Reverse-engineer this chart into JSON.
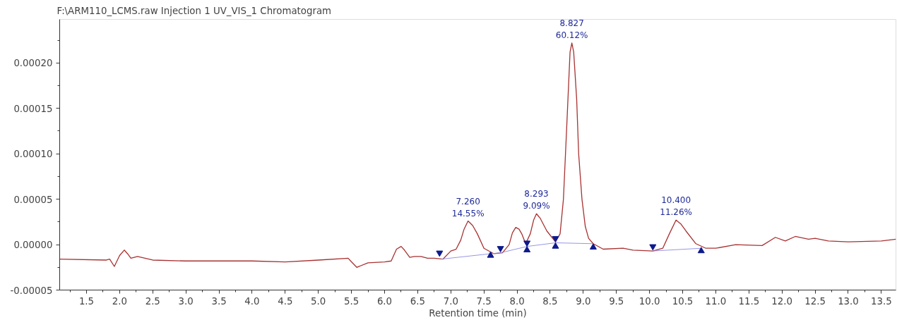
{
  "chart_data": {
    "type": "line",
    "title": "F:\\ARM110_LCMS.raw Injection 1 UV_VIS_1 Chromatogram",
    "xlabel": "Retention time (min)",
    "xlim": [
      1.095,
      13.72
    ],
    "ylim": [
      -5e-05,
      0.000248
    ],
    "xticks": [
      {
        "value": 1.25,
        "label": null
      },
      {
        "value": 1.5,
        "label": "1.5"
      },
      {
        "value": 1.75,
        "label": null
      },
      {
        "value": 2,
        "label": "2.0"
      },
      {
        "value": 2.25,
        "label": null
      },
      {
        "value": 2.5,
        "label": "2.5"
      },
      {
        "value": 2.75,
        "label": null
      },
      {
        "value": 3,
        "label": "3.0"
      },
      {
        "value": 3.25,
        "label": null
      },
      {
        "value": 3.5,
        "label": "3.5"
      },
      {
        "value": 3.75,
        "label": null
      },
      {
        "value": 4,
        "label": "4.0"
      },
      {
        "value": 4.25,
        "label": null
      },
      {
        "value": 4.5,
        "label": "4.5"
      },
      {
        "value": 4.75,
        "label": null
      },
      {
        "value": 5,
        "label": "5.0"
      },
      {
        "value": 5.25,
        "label": null
      },
      {
        "value": 5.5,
        "label": "5.5"
      },
      {
        "value": 5.75,
        "label": null
      },
      {
        "value": 6,
        "label": "6.0"
      },
      {
        "value": 6.25,
        "label": null
      },
      {
        "value": 6.5,
        "label": "6.5"
      },
      {
        "value": 6.75,
        "label": null
      },
      {
        "value": 7,
        "label": "7.0"
      },
      {
        "value": 7.25,
        "label": null
      },
      {
        "value": 7.5,
        "label": "7.5"
      },
      {
        "value": 7.75,
        "label": null
      },
      {
        "value": 8,
        "label": "8.0"
      },
      {
        "value": 8.25,
        "label": null
      },
      {
        "value": 8.5,
        "label": "8.5"
      },
      {
        "value": 8.75,
        "label": null
      },
      {
        "value": 9,
        "label": "9.0"
      },
      {
        "value": 9.25,
        "label": null
      },
      {
        "value": 9.5,
        "label": "9.5"
      },
      {
        "value": 9.75,
        "label": null
      },
      {
        "value": 10,
        "label": "10.0"
      },
      {
        "value": 10.25,
        "label": null
      },
      {
        "value": 10.5,
        "label": "10.5"
      },
      {
        "value": 10.75,
        "label": null
      },
      {
        "value": 11,
        "label": "11.0"
      },
      {
        "value": 11.25,
        "label": null
      },
      {
        "value": 11.5,
        "label": "11.5"
      },
      {
        "value": 11.75,
        "label": null
      },
      {
        "value": 12,
        "label": "12.0"
      },
      {
        "value": 12.25,
        "label": null
      },
      {
        "value": 12.5,
        "label": "12.5"
      },
      {
        "value": 12.75,
        "label": null
      },
      {
        "value": 13,
        "label": "13.0"
      },
      {
        "value": 13.25,
        "label": null
      },
      {
        "value": 13.5,
        "label": "13.5"
      }
    ],
    "yticks": [
      {
        "value": -5e-05,
        "label": "-0.00005"
      },
      {
        "value": -2.5e-05,
        "label": null
      },
      {
        "value": 0,
        "label": "0.00000"
      },
      {
        "value": 2.5e-05,
        "label": null
      },
      {
        "value": 5e-05,
        "label": "0.00005"
      },
      {
        "value": 7.5e-05,
        "label": null
      },
      {
        "value": 0.0001,
        "label": "0.00010"
      },
      {
        "value": 0.000125,
        "label": null
      },
      {
        "value": 0.00015,
        "label": "0.00015"
      },
      {
        "value": 0.000175,
        "label": null
      },
      {
        "value": 0.0002,
        "label": "0.00020"
      },
      {
        "value": 0.000225,
        "label": null
      }
    ],
    "grid": false,
    "series": [
      {
        "color": "#a83232",
        "x": [
          1.1,
          1.8,
          1.85,
          1.92,
          2.0,
          2.07,
          2.12,
          2.17,
          2.27,
          2.5,
          3.0,
          4.0,
          4.5,
          5.0,
          5.45,
          5.5,
          5.58,
          5.75,
          6.0,
          6.1,
          6.18,
          6.25,
          6.3,
          6.38,
          6.45,
          6.55,
          6.65,
          6.75,
          6.88,
          7.0,
          7.08,
          7.15,
          7.2,
          7.26,
          7.33,
          7.4,
          7.5,
          7.65,
          7.78,
          7.88,
          7.93,
          7.98,
          8.03,
          8.07,
          8.13,
          8.2,
          8.25,
          8.293,
          8.35,
          8.45,
          8.58,
          8.65,
          8.7,
          8.75,
          8.8,
          8.827,
          8.855,
          8.9,
          8.93,
          8.98,
          9.03,
          9.08,
          9.15,
          9.3,
          9.6,
          9.75,
          10.05,
          10.2,
          10.3,
          10.4,
          10.47,
          10.55,
          10.7,
          10.85,
          11.0,
          11.3,
          11.7,
          11.9,
          12.05,
          12.2,
          12.4,
          12.5,
          12.7,
          13.0,
          13.5,
          13.72
        ],
        "values": [
          -1.6e-05,
          -1.7e-05,
          -1.6e-05,
          -2.4e-05,
          -1.2e-05,
          -6e-06,
          -1e-05,
          -1.5e-05,
          -1.3e-05,
          -1.7e-05,
          -1.8e-05,
          -1.8e-05,
          -1.9e-05,
          -1.7e-05,
          -1.5e-05,
          -1.9e-05,
          -2.5e-05,
          -2e-05,
          -1.9e-05,
          -1.8e-05,
          -5e-06,
          -2e-06,
          -6e-06,
          -1.4e-05,
          -1.3e-05,
          -1.3e-05,
          -1.5e-05,
          -1.5e-05,
          -1.6e-05,
          -7e-06,
          -5e-06,
          5e-06,
          1.7e-05,
          2.6e-05,
          2.1e-05,
          1.2e-05,
          -4e-06,
          -1e-05,
          -9e-06,
          0.0,
          1.3e-05,
          1.9e-05,
          1.7e-05,
          1.2e-05,
          1e-06,
          1.2e-05,
          2.7e-05,
          3.4e-05,
          2.9e-05,
          1.5e-05,
          3e-06,
          1.2e-05,
          5e-05,
          0.00013,
          0.000212,
          0.000222,
          0.000212,
          0.00016,
          0.0001,
          5e-05,
          2e-05,
          7e-06,
          1e-06,
          -5e-06,
          -4e-06,
          -6e-06,
          -7e-06,
          -4e-06,
          1.2e-05,
          2.7e-05,
          2.3e-05,
          1.5e-05,
          1e-06,
          -4e-06,
          -4e-06,
          0.0,
          -1e-06,
          8e-06,
          4e-06,
          9e-06,
          6e-06,
          7e-06,
          4e-06,
          3e-06,
          4e-06,
          6e-06
        ]
      },
      {
        "color": "#8a8ae6",
        "x": [
          6.85,
          7.6,
          7.75,
          8.15,
          8.58,
          9.15
        ],
        "values": [
          -1.6e-05,
          -1e-05,
          -9e-06,
          -2e-06,
          2e-06,
          1e-06
        ]
      },
      {
        "color": "#8a8ae6",
        "x": [
          10.05,
          10.78
        ],
        "values": [
          -7e-06,
          -4e-06
        ]
      },
      {
        "type": "scatter",
        "color": "#0d1a8c",
        "x": [
          6.83,
          7.75,
          8.15,
          8.58,
          10.05
        ],
        "values": [
          -9e-06,
          -4e-06,
          2e-06,
          7e-06,
          -2e-06
        ]
      },
      {
        "type": "scatter",
        "marker": "triangle",
        "color": "#0d1a8c",
        "x": [
          7.6,
          8.15,
          8.58,
          9.15,
          10.78
        ],
        "values": [
          -1.2e-05,
          -6e-06,
          -2e-06,
          -3e-06,
          -7e-06
        ]
      }
    ],
    "annotations": [
      {
        "text": "7.260\n14.55%",
        "x": 7.26,
        "y": 2.6e-05
      },
      {
        "text": "8.293\n9.09%",
        "x": 8.293,
        "y": 3.4e-05
      },
      {
        "text": "8.827\n60.12%",
        "x": 8.827,
        "y": 0.000222
      },
      {
        "text": "10.400\n11.26%",
        "x": 10.4,
        "y": 2.7e-05
      }
    ]
  }
}
